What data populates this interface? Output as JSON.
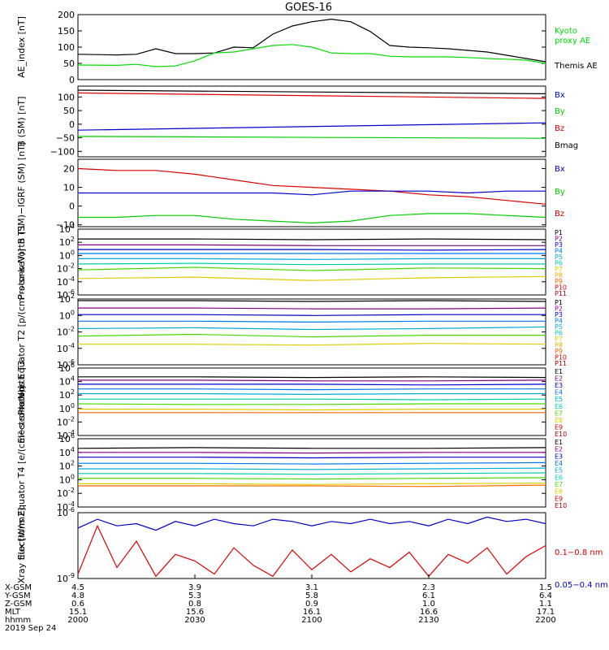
{
  "title": "GOES-16",
  "xaxis": {
    "time_ticks": [
      "2000",
      "2030",
      "2100",
      "2130",
      "2200"
    ],
    "rows": [
      {
        "label": "X-GSM",
        "values": [
          "4.5",
          "3.9",
          "3.1",
          "2.3",
          "1.5"
        ]
      },
      {
        "label": "Y-GSM",
        "values": [
          "4.8",
          "5.3",
          "5.8",
          "6.1",
          "6.4"
        ]
      },
      {
        "label": "Z-GSM",
        "values": [
          "0.6",
          "0.8",
          "0.9",
          "1.0",
          "1.1"
        ]
      },
      {
        "label": "MLT",
        "values": [
          "15.1",
          "15.6",
          "16.1",
          "16.6",
          "17.1"
        ]
      },
      {
        "label": "hhmm",
        "values": [
          "2000",
          "2030",
          "2100",
          "2130",
          "2200"
        ]
      }
    ],
    "date": "2019 Sep 24"
  },
  "chart_data": [
    {
      "type": "line",
      "ylabel": "AE_index [nT]",
      "ylim": [
        0,
        200
      ],
      "yticks": [
        {
          "v": 0,
          "label": "0"
        },
        {
          "v": 50,
          "label": "50"
        },
        {
          "v": 100,
          "label": "100"
        },
        {
          "v": 150,
          "label": "150"
        },
        {
          "v": 200,
          "label": "200"
        }
      ],
      "legend": [
        {
          "label": "Kyoto",
          "color": "#00dd00"
        },
        {
          "label": "proxy AE",
          "color": "#00dd00"
        },
        {
          "label": "Themis AE",
          "color": "#000000"
        }
      ],
      "x": [
        0,
        10,
        15,
        20,
        25,
        30,
        35,
        40,
        45,
        50,
        55,
        60,
        65,
        70,
        75,
        80,
        85,
        90,
        95,
        100,
        105,
        110,
        115,
        120
      ],
      "series": [
        {
          "color": "#000000",
          "values": [
            78,
            76,
            78,
            95,
            80,
            80,
            82,
            100,
            98,
            140,
            165,
            178,
            186,
            178,
            148,
            105,
            100,
            98,
            95,
            90,
            85,
            75,
            65,
            55
          ]
        },
        {
          "color": "#00dd00",
          "values": [
            45,
            44,
            47,
            40,
            42,
            58,
            82,
            85,
            95,
            105,
            108,
            100,
            82,
            80,
            80,
            72,
            70,
            70,
            70,
            68,
            65,
            63,
            60,
            50
          ]
        }
      ]
    },
    {
      "type": "line",
      "ylabel": "B (SM) [nT]",
      "ylim": [
        -120,
        140
      ],
      "yticks": [
        {
          "v": -100,
          "label": "−100"
        },
        {
          "v": -50,
          "label": "−50"
        },
        {
          "v": 0,
          "label": "0"
        },
        {
          "v": 50,
          "label": "50"
        },
        {
          "v": 100,
          "label": "100"
        }
      ],
      "legend": [
        {
          "label": "Bx",
          "color": "#0000cc"
        },
        {
          "label": "By",
          "color": "#00cc00"
        },
        {
          "label": "Bz",
          "color": "#dd0000"
        },
        {
          "label": "Bmag",
          "color": "#000000"
        }
      ],
      "x": [
        0,
        120
      ],
      "series": [
        {
          "color": "#000000",
          "values": [
            125,
            112
          ]
        },
        {
          "color": "#dd0000",
          "values": [
            115,
            95
          ]
        },
        {
          "color": "#0000cc",
          "values": [
            -22,
            5
          ]
        },
        {
          "color": "#00cc00",
          "values": [
            -45,
            -52
          ]
        }
      ]
    },
    {
      "type": "line",
      "ylabel": "B (SM)−IGRF (SM) [nT]",
      "ylim": [
        -11,
        25
      ],
      "yticks": [
        {
          "v": -10,
          "label": "−10"
        },
        {
          "v": 0,
          "label": "0"
        },
        {
          "v": 10,
          "label": "10"
        },
        {
          "v": 20,
          "label": "20"
        }
      ],
      "legend": [
        {
          "label": "Bx",
          "color": "#0000cc"
        },
        {
          "label": "By",
          "color": "#00cc00"
        },
        {
          "label": "Bz",
          "color": "#dd0000"
        }
      ],
      "x": [
        0,
        10,
        20,
        30,
        40,
        50,
        60,
        70,
        80,
        90,
        100,
        110,
        120
      ],
      "series": [
        {
          "color": "#dd0000",
          "values": [
            20,
            19,
            19,
            17,
            14,
            11,
            10,
            9,
            8,
            6,
            5,
            3,
            1
          ]
        },
        {
          "color": "#0000cc",
          "values": [
            7,
            7,
            7,
            7,
            7,
            7,
            6,
            8,
            8,
            8,
            7,
            8,
            8
          ]
        },
        {
          "color": "#00cc00",
          "values": [
            -6,
            -6,
            -5,
            -5,
            -7,
            -8,
            -9,
            -8,
            -5,
            -4,
            -4,
            -5,
            -6
          ]
        }
      ]
    },
    {
      "type": "line",
      "scale": "log",
      "ylabel": "Protons North T1",
      "ylim": [
        -6,
        4
      ],
      "yticks": [
        {
          "v": 4,
          "label": "10^4"
        },
        {
          "v": 2,
          "label": "10^2"
        },
        {
          "v": 0,
          "label": "10^0"
        },
        {
          "v": -2,
          "label": "10^-2"
        },
        {
          "v": -4,
          "label": "10^-4"
        },
        {
          "v": -6,
          "label": "10^-6"
        }
      ],
      "legend": [
        {
          "label": "P1",
          "color": "#000000"
        },
        {
          "label": "P2",
          "color": "#880088"
        },
        {
          "label": "P3",
          "color": "#0000cc"
        },
        {
          "label": "P4",
          "color": "#0077ee"
        },
        {
          "label": "P5",
          "color": "#00aadd"
        },
        {
          "label": "P6",
          "color": "#00ccaa"
        },
        {
          "label": "P7",
          "color": "#ddcc00"
        },
        {
          "label": "P8",
          "color": "#eeaa00"
        },
        {
          "label": "P9",
          "color": "#ff6600"
        },
        {
          "label": "P10",
          "color": "#dd0000"
        },
        {
          "label": "P11",
          "color": "#aa0000"
        }
      ],
      "x": [
        0,
        30,
        60,
        90,
        120
      ],
      "series": [
        {
          "color": "#000000",
          "values": [
            2.5,
            2.5,
            2.4,
            2.5,
            2.4
          ]
        },
        {
          "color": "#880088",
          "values": [
            1.6,
            1.6,
            1.5,
            1.5,
            1.5
          ]
        },
        {
          "color": "#0000cc",
          "values": [
            0.9,
            0.9,
            0.9,
            0.8,
            0.9
          ]
        },
        {
          "color": "#0077ee",
          "values": [
            0.3,
            0.3,
            0.3,
            0.3,
            0.3
          ]
        },
        {
          "color": "#00aadd",
          "values": [
            -0.5,
            -0.5,
            -0.6,
            -0.5,
            -0.5
          ]
        },
        {
          "color": "#00ccaa",
          "values": [
            -1.3,
            -1.2,
            -1.4,
            -1.3,
            -1.3
          ]
        },
        {
          "color": "#44dd00",
          "values": [
            -2.2,
            -1.8,
            -2.3,
            -1.9,
            -2.0
          ]
        },
        {
          "color": "#ddcc00",
          "values": [
            -3.5,
            -3.3,
            -3.8,
            -3.4,
            -3.2
          ]
        }
      ]
    },
    {
      "type": "line",
      "scale": "log",
      "ylabel": "Protons Equator T2 [p/(cm²-s-sr-keV)]",
      "ylim": [
        -6,
        2
      ],
      "yticks": [
        {
          "v": 2,
          "label": "10^2"
        },
        {
          "v": 0,
          "label": "10^0"
        },
        {
          "v": -2,
          "label": "10^-2"
        },
        {
          "v": -4,
          "label": "10^-4"
        },
        {
          "v": -6,
          "label": "10^-6"
        }
      ],
      "legend": [
        {
          "label": "P1",
          "color": "#000000"
        },
        {
          "label": "P2",
          "color": "#880088"
        },
        {
          "label": "P3",
          "color": "#0000cc"
        },
        {
          "label": "P4",
          "color": "#0077ee"
        },
        {
          "label": "P5",
          "color": "#00aadd"
        },
        {
          "label": "P6",
          "color": "#00ccaa"
        },
        {
          "label": "P7",
          "color": "#ddcc00"
        },
        {
          "label": "P8",
          "color": "#eeaa00"
        },
        {
          "label": "P9",
          "color": "#ff6600"
        },
        {
          "label": "P10",
          "color": "#dd0000"
        },
        {
          "label": "P11",
          "color": "#aa0000"
        }
      ],
      "x": [
        0,
        30,
        60,
        90,
        120
      ],
      "series": [
        {
          "color": "#000000",
          "values": [
            1.8,
            1.8,
            1.7,
            1.8,
            1.7
          ]
        },
        {
          "color": "#880088",
          "values": [
            0.9,
            0.9,
            0.8,
            0.8,
            0.9
          ]
        },
        {
          "color": "#0000cc",
          "values": [
            0.1,
            0.1,
            0.0,
            0.1,
            0.1
          ]
        },
        {
          "color": "#0077ee",
          "values": [
            -0.7,
            -0.7,
            -0.8,
            -0.7,
            -0.7
          ]
        },
        {
          "color": "#00aadd",
          "values": [
            -1.6,
            -1.5,
            -1.7,
            -1.6,
            -1.4
          ]
        },
        {
          "color": "#44dd00",
          "values": [
            -2.5,
            -2.3,
            -2.6,
            -2.4,
            -2.4
          ]
        },
        {
          "color": "#ddcc00",
          "values": [
            -3.5,
            -3.5,
            -3.6,
            -3.4,
            -3.5
          ]
        }
      ]
    },
    {
      "type": "line",
      "scale": "log",
      "ylabel": "Electrons North T3",
      "ylim": [
        -4,
        6
      ],
      "yticks": [
        {
          "v": 6,
          "label": "10^6"
        },
        {
          "v": 4,
          "label": "10^4"
        },
        {
          "v": 2,
          "label": "10^2"
        },
        {
          "v": 0,
          "label": "10^0"
        },
        {
          "v": -2,
          "label": "10^-2"
        },
        {
          "v": -4,
          "label": "10^-4"
        }
      ],
      "legend": [
        {
          "label": "E1",
          "color": "#000000"
        },
        {
          "label": "E2",
          "color": "#880088"
        },
        {
          "label": "E3",
          "color": "#0000cc"
        },
        {
          "label": "E4",
          "color": "#0077ee"
        },
        {
          "label": "E5",
          "color": "#00aadd"
        },
        {
          "label": "E6",
          "color": "#00ccaa"
        },
        {
          "label": "E7",
          "color": "#44dd00"
        },
        {
          "label": "E8",
          "color": "#ddcc00"
        },
        {
          "label": "E9",
          "color": "#dd0000"
        },
        {
          "label": "E10",
          "color": "#aa0000"
        }
      ],
      "x": [
        0,
        30,
        60,
        90,
        120
      ],
      "series": [
        {
          "color": "#000000",
          "values": [
            4.7,
            4.7,
            4.6,
            4.7,
            4.6
          ]
        },
        {
          "color": "#880088",
          "values": [
            4.2,
            4.2,
            4.1,
            4.1,
            4.2
          ]
        },
        {
          "color": "#0000cc",
          "values": [
            3.6,
            3.6,
            3.6,
            3.5,
            3.6
          ]
        },
        {
          "color": "#0077ee",
          "values": [
            2.9,
            2.9,
            2.8,
            2.9,
            2.9
          ]
        },
        {
          "color": "#00aadd",
          "values": [
            2.2,
            2.2,
            2.1,
            2.2,
            2.2
          ]
        },
        {
          "color": "#00ccaa",
          "values": [
            1.4,
            1.4,
            1.4,
            1.3,
            1.4
          ]
        },
        {
          "color": "#44dd00",
          "values": [
            0.7,
            0.6,
            0.6,
            0.7,
            0.7
          ]
        },
        {
          "color": "#ddcc00",
          "values": [
            -0.1,
            -0.1,
            -0.2,
            -0.1,
            -0.1
          ]
        },
        {
          "color": "#ff6600",
          "values": [
            -0.6,
            -0.6,
            -0.6,
            -0.6,
            -0.6
          ]
        }
      ]
    },
    {
      "type": "line",
      "scale": "log",
      "ylabel": "Electrons Equator T4 [e/(cm²-s-sr-keV)]",
      "ylim": [
        -4,
        6
      ],
      "yticks": [
        {
          "v": 6,
          "label": "10^6"
        },
        {
          "v": 4,
          "label": "10^4"
        },
        {
          "v": 2,
          "label": "10^2"
        },
        {
          "v": 0,
          "label": "10^0"
        },
        {
          "v": -2,
          "label": "10^-2"
        },
        {
          "v": -4,
          "label": "10^-4"
        }
      ],
      "legend": [
        {
          "label": "E1",
          "color": "#000000"
        },
        {
          "label": "E2",
          "color": "#880088"
        },
        {
          "label": "E3",
          "color": "#0000cc"
        },
        {
          "label": "E4",
          "color": "#0077ee"
        },
        {
          "label": "E5",
          "color": "#00aadd"
        },
        {
          "label": "E6",
          "color": "#00ccaa"
        },
        {
          "label": "E7",
          "color": "#44dd00"
        },
        {
          "label": "E8",
          "color": "#ddcc00"
        },
        {
          "label": "E9",
          "color": "#dd0000"
        },
        {
          "label": "E10",
          "color": "#aa0000"
        }
      ],
      "x": [
        0,
        30,
        60,
        90,
        120
      ],
      "series": [
        {
          "color": "#000000",
          "values": [
            4.6,
            4.7,
            4.6,
            4.6,
            4.7
          ]
        },
        {
          "color": "#880088",
          "values": [
            4.0,
            4.0,
            3.9,
            4.0,
            4.0
          ]
        },
        {
          "color": "#0000cc",
          "values": [
            3.3,
            3.3,
            3.2,
            3.3,
            3.3
          ]
        },
        {
          "color": "#0077ee",
          "values": [
            2.4,
            2.4,
            2.3,
            2.4,
            2.5
          ]
        },
        {
          "color": "#00aadd",
          "values": [
            1.6,
            1.6,
            1.5,
            1.6,
            1.7
          ]
        },
        {
          "color": "#00ccaa",
          "values": [
            0.9,
            0.9,
            0.8,
            0.9,
            1.0
          ]
        },
        {
          "color": "#44dd00",
          "values": [
            0.2,
            0.2,
            0.1,
            0.2,
            0.3
          ]
        },
        {
          "color": "#ddcc00",
          "values": [
            -0.6,
            -0.6,
            -0.7,
            -0.6,
            -0.5
          ]
        },
        {
          "color": "#ff6600",
          "values": [
            -0.9,
            -0.9,
            -0.9,
            -1.0,
            -0.8
          ]
        }
      ]
    },
    {
      "type": "line",
      "scale": "log",
      "ylabel": "Xray flux [W/m2]",
      "ylim": [
        -9,
        -6
      ],
      "yticks": [
        {
          "v": -6,
          "label": "10^-6"
        },
        {
          "v": -9,
          "label": "10^-9"
        }
      ],
      "legend": [
        {
          "label": "0.1−0.8 nm",
          "color": "#dd0000"
        },
        {
          "label": "0.05−0.4 nm",
          "color": "#0000cc"
        }
      ],
      "x": [
        0,
        5,
        10,
        15,
        20,
        25,
        30,
        35,
        40,
        45,
        50,
        55,
        60,
        65,
        70,
        75,
        80,
        85,
        90,
        95,
        100,
        105,
        110,
        115,
        120
      ],
      "series": [
        {
          "color": "#0000cc",
          "values": [
            -6.7,
            -6.3,
            -6.6,
            -6.5,
            -6.8,
            -6.4,
            -6.6,
            -6.3,
            -6.5,
            -6.6,
            -6.3,
            -6.4,
            -6.6,
            -6.4,
            -6.5,
            -6.3,
            -6.5,
            -6.4,
            -6.6,
            -6.3,
            -6.5,
            -6.2,
            -6.4,
            -6.3,
            -6.5
          ]
        },
        {
          "color": "#dd0000",
          "values": [
            -8.8,
            -6.6,
            -8.5,
            -7.3,
            -8.9,
            -7.9,
            -8.2,
            -8.8,
            -7.6,
            -8.4,
            -8.9,
            -7.7,
            -8.6,
            -7.9,
            -8.7,
            -8.1,
            -8.5,
            -7.8,
            -8.9,
            -7.9,
            -8.3,
            -7.6,
            -8.8,
            -8.0,
            -7.5
          ]
        }
      ]
    }
  ]
}
